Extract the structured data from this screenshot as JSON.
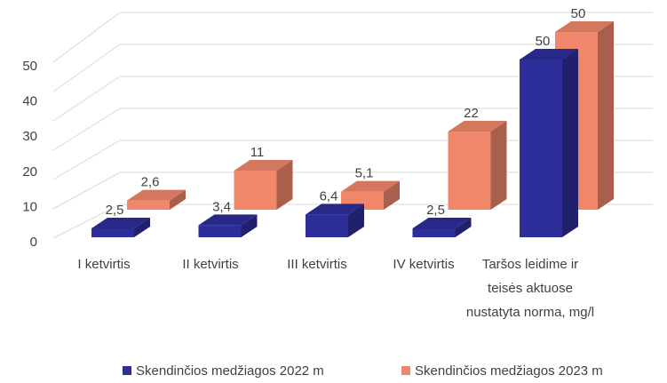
{
  "chart_data": {
    "type": "bar3d",
    "categories": [
      "I ketvirtis",
      "II ketvirtis",
      "III ketvirtis",
      "IV ketvirtis",
      "Taršos leidime ir\nteisės aktuose nustatyta norma, mg/l"
    ],
    "series": [
      {
        "name": "Skendinčios medžiagos 2022 m",
        "color": "#2e2e9a",
        "values": [
          2.5,
          3.4,
          6.4,
          2.5,
          50
        ],
        "value_labels": [
          "2,5",
          "3,4",
          "6,4",
          "2,5",
          "50"
        ]
      },
      {
        "name": "Skendinčios medžiagos 2023 m",
        "color": "#f0876b",
        "values": [
          2.6,
          11,
          5.1,
          22,
          50
        ],
        "value_labels": [
          "2,6",
          "11",
          "5,1",
          "22",
          "50"
        ]
      }
    ],
    "ylim": [
      0,
      60
    ],
    "yticks": [
      0,
      10,
      20,
      30,
      40,
      50
    ],
    "grid": true,
    "legend": "bottom"
  }
}
